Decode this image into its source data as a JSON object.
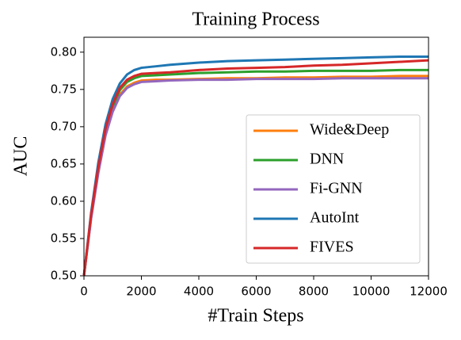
{
  "chart_data": {
    "type": "line",
    "title": "Training Process",
    "x_label": "#Train Steps",
    "y_label": "AUC",
    "x": [
      0,
      250,
      500,
      750,
      1000,
      1250,
      1500,
      1750,
      2000,
      2500,
      3000,
      4000,
      5000,
      6000,
      7000,
      8000,
      9000,
      10000,
      11000,
      12000
    ],
    "series": [
      {
        "name": "Wide&Deep",
        "color": "#ff7f0e",
        "values": [
          0.5,
          0.578,
          0.64,
          0.69,
          0.722,
          0.743,
          0.754,
          0.759,
          0.762,
          0.763,
          0.763,
          0.764,
          0.765,
          0.765,
          0.766,
          0.766,
          0.767,
          0.767,
          0.768,
          0.768
        ]
      },
      {
        "name": "DNN",
        "color": "#2ca02c",
        "values": [
          0.5,
          0.58,
          0.643,
          0.694,
          0.727,
          0.749,
          0.76,
          0.765,
          0.768,
          0.769,
          0.77,
          0.772,
          0.773,
          0.774,
          0.774,
          0.775,
          0.775,
          0.775,
          0.776,
          0.776
        ]
      },
      {
        "name": "Fi-GNN",
        "color": "#9467bd",
        "values": [
          0.5,
          0.577,
          0.638,
          0.688,
          0.72,
          0.741,
          0.752,
          0.757,
          0.76,
          0.761,
          0.762,
          0.763,
          0.763,
          0.764,
          0.764,
          0.764,
          0.765,
          0.765,
          0.765,
          0.765
        ]
      },
      {
        "name": "AutoInt",
        "color": "#1f77b4",
        "values": [
          0.5,
          0.585,
          0.652,
          0.703,
          0.737,
          0.758,
          0.77,
          0.776,
          0.779,
          0.781,
          0.783,
          0.786,
          0.788,
          0.789,
          0.79,
          0.791,
          0.792,
          0.793,
          0.794,
          0.794
        ]
      },
      {
        "name": "FIVES",
        "color": "#d62728",
        "values": [
          0.5,
          0.582,
          0.646,
          0.697,
          0.73,
          0.752,
          0.763,
          0.768,
          0.771,
          0.772,
          0.773,
          0.776,
          0.778,
          0.779,
          0.78,
          0.782,
          0.783,
          0.785,
          0.787,
          0.789
        ]
      }
    ],
    "xlim": [
      0,
      12000
    ],
    "xticks": [
      0,
      2000,
      4000,
      6000,
      8000,
      10000,
      12000
    ],
    "ylim": [
      0.5,
      0.82
    ],
    "yticks": [
      {
        "value": 0.5,
        "label": "0.50"
      },
      0.55,
      {
        "value": 0.6,
        "label": "0.60"
      },
      0.65,
      {
        "value": 0.7,
        "label": "0.70"
      },
      0.75,
      {
        "value": 0.8,
        "label": "0.80"
      }
    ],
    "legend": "lower right"
  }
}
